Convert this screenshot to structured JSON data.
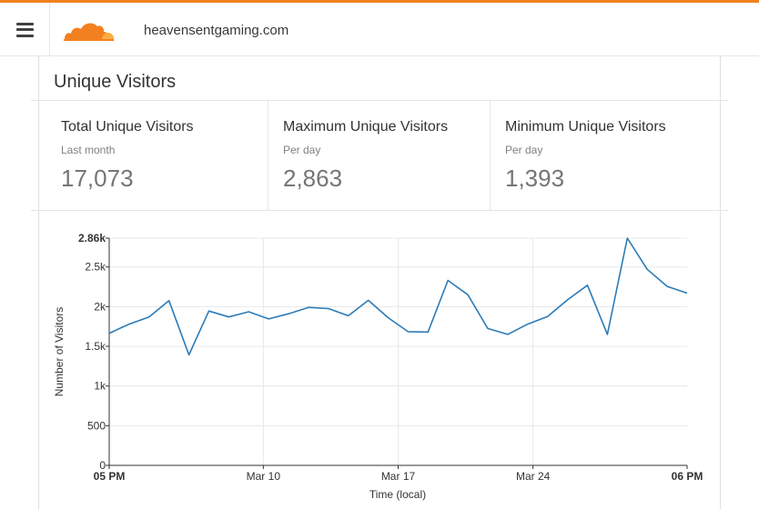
{
  "header": {
    "domain": "heavensentgaming.com",
    "brand_color": "#f38020",
    "menu_icon": "hamburger-icon",
    "logo_icon": "cloudflare-cloud-logo"
  },
  "panel": {
    "title": "Unique Visitors",
    "stats": [
      {
        "title": "Total Unique Visitors",
        "subtitle": "Last month",
        "value": "17,073"
      },
      {
        "title": "Maximum Unique Visitors",
        "subtitle": "Per day",
        "value": "2,863"
      },
      {
        "title": "Minimum Unique Visitors",
        "subtitle": "Per day",
        "value": "1,393"
      }
    ]
  },
  "chart_data": {
    "type": "line",
    "xlabel": "Time (local)",
    "ylabel": "Number of Visitors",
    "ylim": [
      0,
      2863
    ],
    "y_ticks": [
      {
        "value": 0,
        "label": "0"
      },
      {
        "value": 500,
        "label": "500"
      },
      {
        "value": 1000,
        "label": "1k"
      },
      {
        "value": 1500,
        "label": "1.5k"
      },
      {
        "value": 2000,
        "label": "2k"
      },
      {
        "value": 2500,
        "label": "2.5k"
      },
      {
        "value": 2863,
        "label": "2.86k",
        "bold": true
      }
    ],
    "x_range": [
      0,
      30
    ],
    "x_ticks": [
      {
        "value": 0,
        "label": "05 PM",
        "bold": true
      },
      {
        "value": 8,
        "label": "Mar 10",
        "grid": true
      },
      {
        "value": 15,
        "label": "Mar 17",
        "grid": true
      },
      {
        "value": 22,
        "label": "Mar 24",
        "grid": true
      },
      {
        "value": 30,
        "label": "06 PM",
        "bold": true
      }
    ],
    "grid": true,
    "line_color": "#2c7bb6",
    "series": [
      {
        "values": [
          1665,
          1780,
          1870,
          2075,
          1393,
          1945,
          1870,
          1935,
          1845,
          1910,
          1990,
          1975,
          1885,
          2080,
          1860,
          1685,
          1680,
          2330,
          2150,
          1725,
          1650,
          1780,
          1875,
          2085,
          2270,
          1650,
          2863,
          2470,
          2255,
          2170
        ]
      }
    ]
  }
}
